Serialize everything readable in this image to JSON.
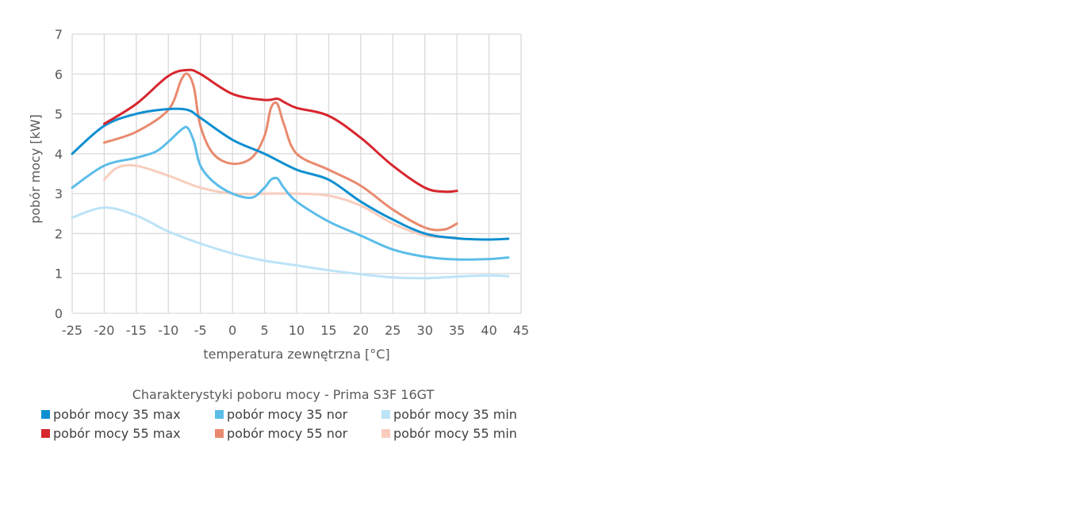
{
  "chart_data": {
    "type": "line",
    "title": "Charakterystyki poboru mocy - Prima S3F 16GT",
    "xlabel": "temperatura zewnętrzna [°C]",
    "ylabel": "pobór mocy [kW]",
    "xlim": [
      -25,
      45
    ],
    "ylim": [
      0,
      7
    ],
    "xticks": [
      -25,
      -20,
      -15,
      -10,
      -5,
      0,
      5,
      10,
      15,
      20,
      25,
      30,
      35,
      40,
      45
    ],
    "yticks": [
      0,
      1,
      2,
      3,
      4,
      5,
      6,
      7
    ],
    "grid": true,
    "legend_position": "bottom",
    "series": [
      {
        "name": "pobór mocy 35 max",
        "color": "#0f8fd1",
        "x": [
          -25,
          -20,
          -15,
          -10,
          -7,
          -5,
          0,
          5,
          10,
          15,
          20,
          25,
          30,
          35,
          40,
          43
        ],
        "y": [
          4.0,
          4.7,
          5.0,
          5.12,
          5.1,
          4.9,
          4.35,
          4.0,
          3.6,
          3.35,
          2.8,
          2.35,
          2.0,
          1.88,
          1.85,
          1.87
        ]
      },
      {
        "name": "pobór mocy 35 nor",
        "color": "#5bbde9",
        "x": [
          -25,
          -20,
          -15,
          -12,
          -10,
          -8,
          -7,
          -6,
          -5,
          -3,
          0,
          3,
          5,
          6,
          7,
          8,
          10,
          15,
          20,
          25,
          30,
          35,
          40,
          43
        ],
        "y": [
          3.15,
          3.7,
          3.9,
          4.05,
          4.3,
          4.6,
          4.65,
          4.3,
          3.7,
          3.3,
          3.0,
          2.9,
          3.15,
          3.35,
          3.38,
          3.15,
          2.8,
          2.3,
          1.95,
          1.6,
          1.42,
          1.35,
          1.36,
          1.4
        ]
      },
      {
        "name": "pobór mocy 35 min",
        "color": "#bde3f7",
        "x": [
          -25,
          -20,
          -15,
          -10,
          -5,
          0,
          5,
          10,
          15,
          20,
          25,
          30,
          35,
          40,
          43
        ],
        "y": [
          2.4,
          2.65,
          2.45,
          2.05,
          1.75,
          1.5,
          1.32,
          1.2,
          1.08,
          0.98,
          0.9,
          0.88,
          0.92,
          0.95,
          0.93
        ]
      },
      {
        "name": "pobór mocy 55 max",
        "color": "#d7262e",
        "x": [
          -20,
          -15,
          -10,
          -7,
          -5,
          0,
          5,
          7,
          8,
          10,
          15,
          20,
          25,
          30,
          33,
          35
        ],
        "y": [
          4.75,
          5.25,
          5.95,
          6.1,
          6.0,
          5.5,
          5.35,
          5.38,
          5.3,
          5.15,
          4.95,
          4.4,
          3.7,
          3.15,
          3.05,
          3.07
        ]
      },
      {
        "name": "pobór mocy 55 nor",
        "color": "#e98a6e",
        "x": [
          -20,
          -15,
          -10,
          -8,
          -7,
          -6,
          -5,
          -3,
          0,
          3,
          5,
          6,
          7,
          8,
          10,
          15,
          20,
          25,
          30,
          33,
          35
        ],
        "y": [
          4.28,
          4.55,
          5.1,
          5.85,
          6.0,
          5.65,
          4.7,
          4.0,
          3.75,
          3.9,
          4.45,
          5.15,
          5.25,
          4.75,
          4.0,
          3.6,
          3.2,
          2.6,
          2.15,
          2.1,
          2.25
        ]
      },
      {
        "name": "pobór mocy 55 min",
        "color": "#f8cdbd",
        "x": [
          -20,
          -18,
          -15,
          -10,
          -5,
          0,
          5,
          10,
          15,
          20,
          25,
          30,
          35
        ],
        "y": [
          3.35,
          3.65,
          3.7,
          3.45,
          3.15,
          3.0,
          3.0,
          3.0,
          2.95,
          2.7,
          2.25,
          1.95,
          1.9
        ]
      }
    ]
  }
}
